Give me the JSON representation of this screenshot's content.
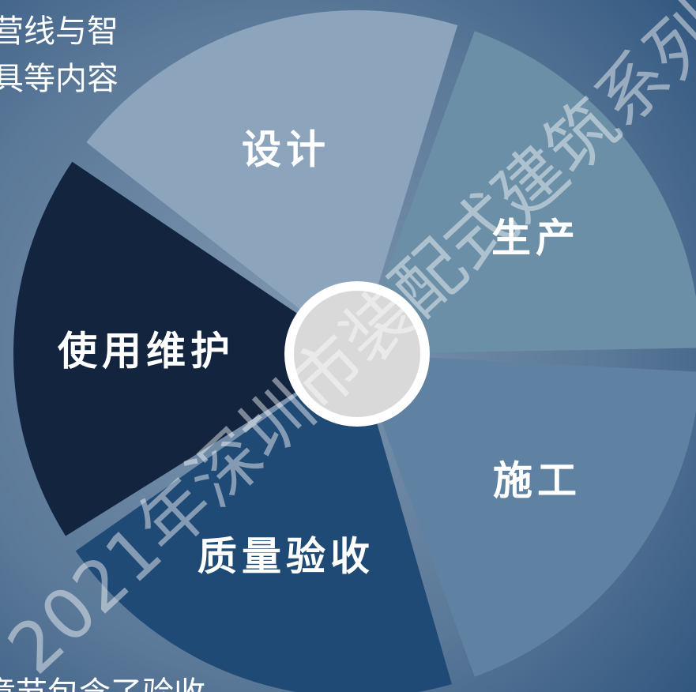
{
  "intro_lines": [
    "营线与智",
    "具等内容"
  ],
  "footer_text": "章节包含了验收",
  "watermark": "2021年深圳市装配式建筑系列",
  "segments": [
    {
      "label": "生产",
      "color": "#6b8fa6"
    },
    {
      "label": "施工",
      "color": "#5f82a2"
    },
    {
      "label": "质量验收",
      "color": "#1f4a75"
    },
    {
      "label": "使用维护",
      "color": "#13243f"
    },
    {
      "label": "设计",
      "color": "#8da4bd"
    }
  ]
}
